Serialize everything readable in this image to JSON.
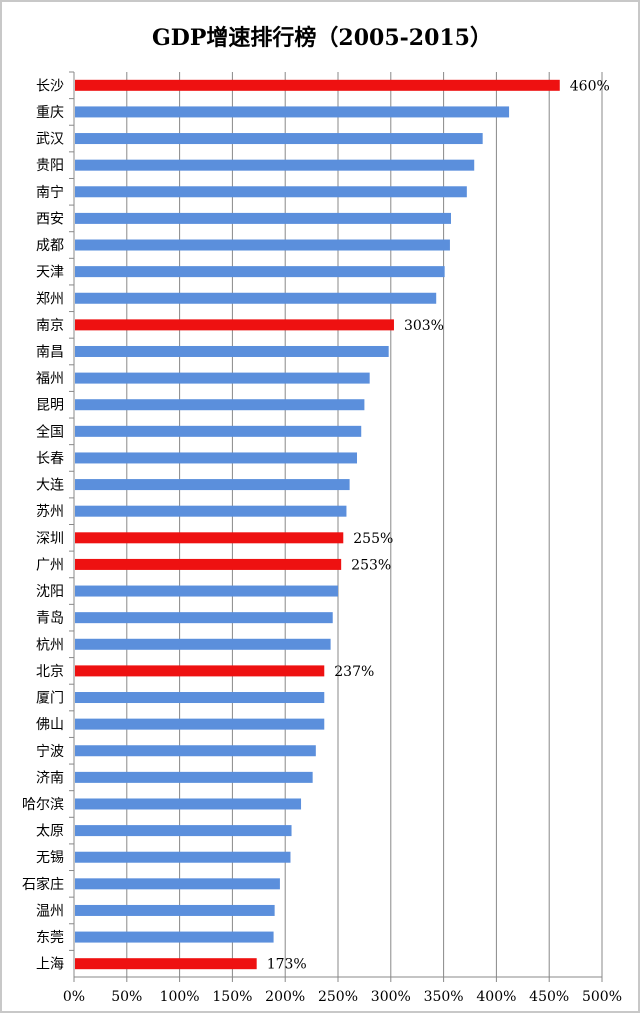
{
  "chart_data": {
    "type": "bar",
    "orientation": "horizontal",
    "title": "GDP增速排行榜（2005-2015）",
    "categories": [
      "长沙",
      "重庆",
      "武汉",
      "贵阳",
      "南宁",
      "西安",
      "成都",
      "天津",
      "郑州",
      "南京",
      "南昌",
      "福州",
      "昆明",
      "全国",
      "长春",
      "大连",
      "苏州",
      "深圳",
      "广州",
      "沈阳",
      "青岛",
      "杭州",
      "北京",
      "厦门",
      "佛山",
      "宁波",
      "济南",
      "哈尔滨",
      "太原",
      "无锡",
      "石家庄",
      "温州",
      "东莞",
      "上海"
    ],
    "values": [
      460,
      412,
      387,
      379,
      372,
      357,
      356,
      351,
      343,
      303,
      298,
      280,
      275,
      272,
      268,
      261,
      258,
      255,
      253,
      250,
      245,
      243,
      237,
      237,
      237,
      229,
      226,
      215,
      206,
      205,
      195,
      190,
      189,
      173
    ],
    "highlighted": [
      "长沙",
      "南京",
      "深圳",
      "广州",
      "北京",
      "上海"
    ],
    "data_labels": {
      "长沙": "460%",
      "南京": "303%",
      "深圳": "255%",
      "广州": "253%",
      "北京": "237%",
      "上海": "173%"
    },
    "xlim": [
      0,
      500
    ],
    "x_ticks": [
      "0%",
      "50%",
      "100%",
      "150%",
      "200%",
      "250%",
      "300%",
      "350%",
      "400%",
      "450%",
      "500%"
    ],
    "grid": true,
    "colors": {
      "highlight": "#ee1111",
      "default": "#5b8fdc",
      "grid": "#888888"
    }
  }
}
